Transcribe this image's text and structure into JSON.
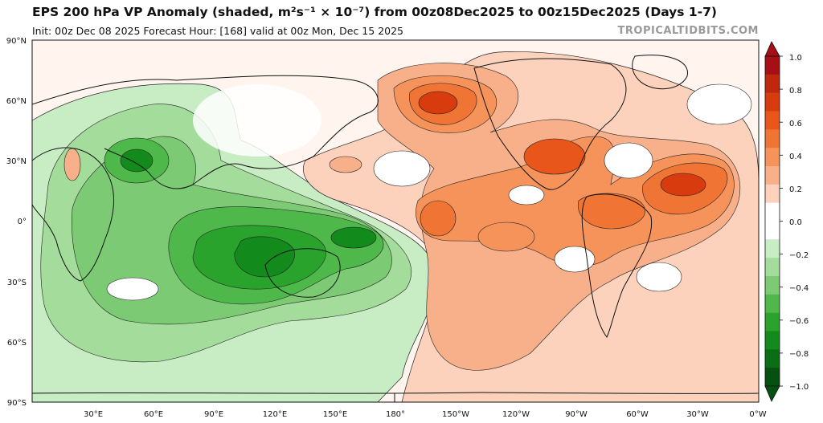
{
  "header": {
    "title": "EPS 200 hPa VP Anomaly (shaded, m²s⁻¹ × 10⁻⁷) from 00z08Dec2025 to 00z15Dec2025 (Days 1-7)",
    "subtitle": "Init: 00z Dec 08 2025   Forecast Hour: [168]   valid at 00z Mon, Dec 15 2025",
    "brand": "TROPICALTIDBITS.COM"
  },
  "axes": {
    "lon_labels": [
      "30°E",
      "60°E",
      "90°E",
      "120°E",
      "150°E",
      "180°",
      "150°W",
      "120°W",
      "90°W",
      "60°W",
      "30°W",
      "0°W"
    ],
    "lat_labels": [
      "90°N",
      "60°N",
      "30°N",
      "0°",
      "30°S",
      "60°S",
      "90°S"
    ]
  },
  "colorbar": {
    "labels": [
      "1.0",
      "0.8",
      "0.6",
      "0.4",
      "0.2",
      "0.0",
      "−0.2",
      "−0.4",
      "−0.6",
      "−0.8",
      "−1.0"
    ],
    "colors_top_to_bottom": [
      "#a50f15",
      "#c0280e",
      "#d83b0e",
      "#e8561b",
      "#f07433",
      "#f5935a",
      "#f8b08a",
      "#fcd2bd",
      "#ffffff",
      "#ffffff",
      "#c8ecc4",
      "#a4dc9c",
      "#7ccb74",
      "#4fb84a",
      "#2aa32c",
      "#138a1c",
      "#0a6f14",
      "#065010"
    ]
  },
  "map": {
    "land_color": "#111111",
    "positive_color": "#f07433",
    "negative_color": "#2aa32c",
    "projection": "equirectangular"
  }
}
